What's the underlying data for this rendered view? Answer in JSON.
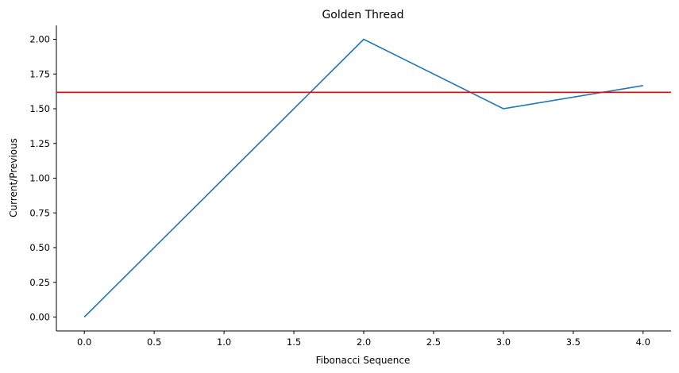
{
  "chart_data": {
    "type": "line",
    "title": "Golden Thread",
    "xlabel": "Fibonacci Sequence",
    "ylabel": "Current/Previous",
    "xlim": [
      -0.2,
      4.2
    ],
    "ylim": [
      -0.1,
      2.1
    ],
    "xticks": [
      0.0,
      0.5,
      1.0,
      1.5,
      2.0,
      2.5,
      3.0,
      3.5,
      4.0
    ],
    "xtick_labels": [
      "0.0",
      "0.5",
      "1.0",
      "1.5",
      "2.0",
      "2.5",
      "3.0",
      "3.5",
      "4.0"
    ],
    "yticks": [
      0.0,
      0.25,
      0.5,
      0.75,
      1.0,
      1.25,
      1.5,
      1.75,
      2.0
    ],
    "ytick_labels": [
      "0.00",
      "0.25",
      "0.50",
      "0.75",
      "1.00",
      "1.25",
      "1.50",
      "1.75",
      "2.00"
    ],
    "grid": false,
    "series": [
      {
        "x": [
          0,
          1,
          2,
          3,
          4
        ],
        "y": [
          0.0,
          1.0,
          2.0,
          1.5,
          1.6667
        ],
        "color": "#1f77b4"
      }
    ],
    "reference_lines": [
      {
        "orientation": "horizontal",
        "y": 1.618,
        "color": "#ff0000"
      }
    ],
    "spines": {
      "top": false,
      "right": false,
      "left": true,
      "bottom": true
    }
  }
}
